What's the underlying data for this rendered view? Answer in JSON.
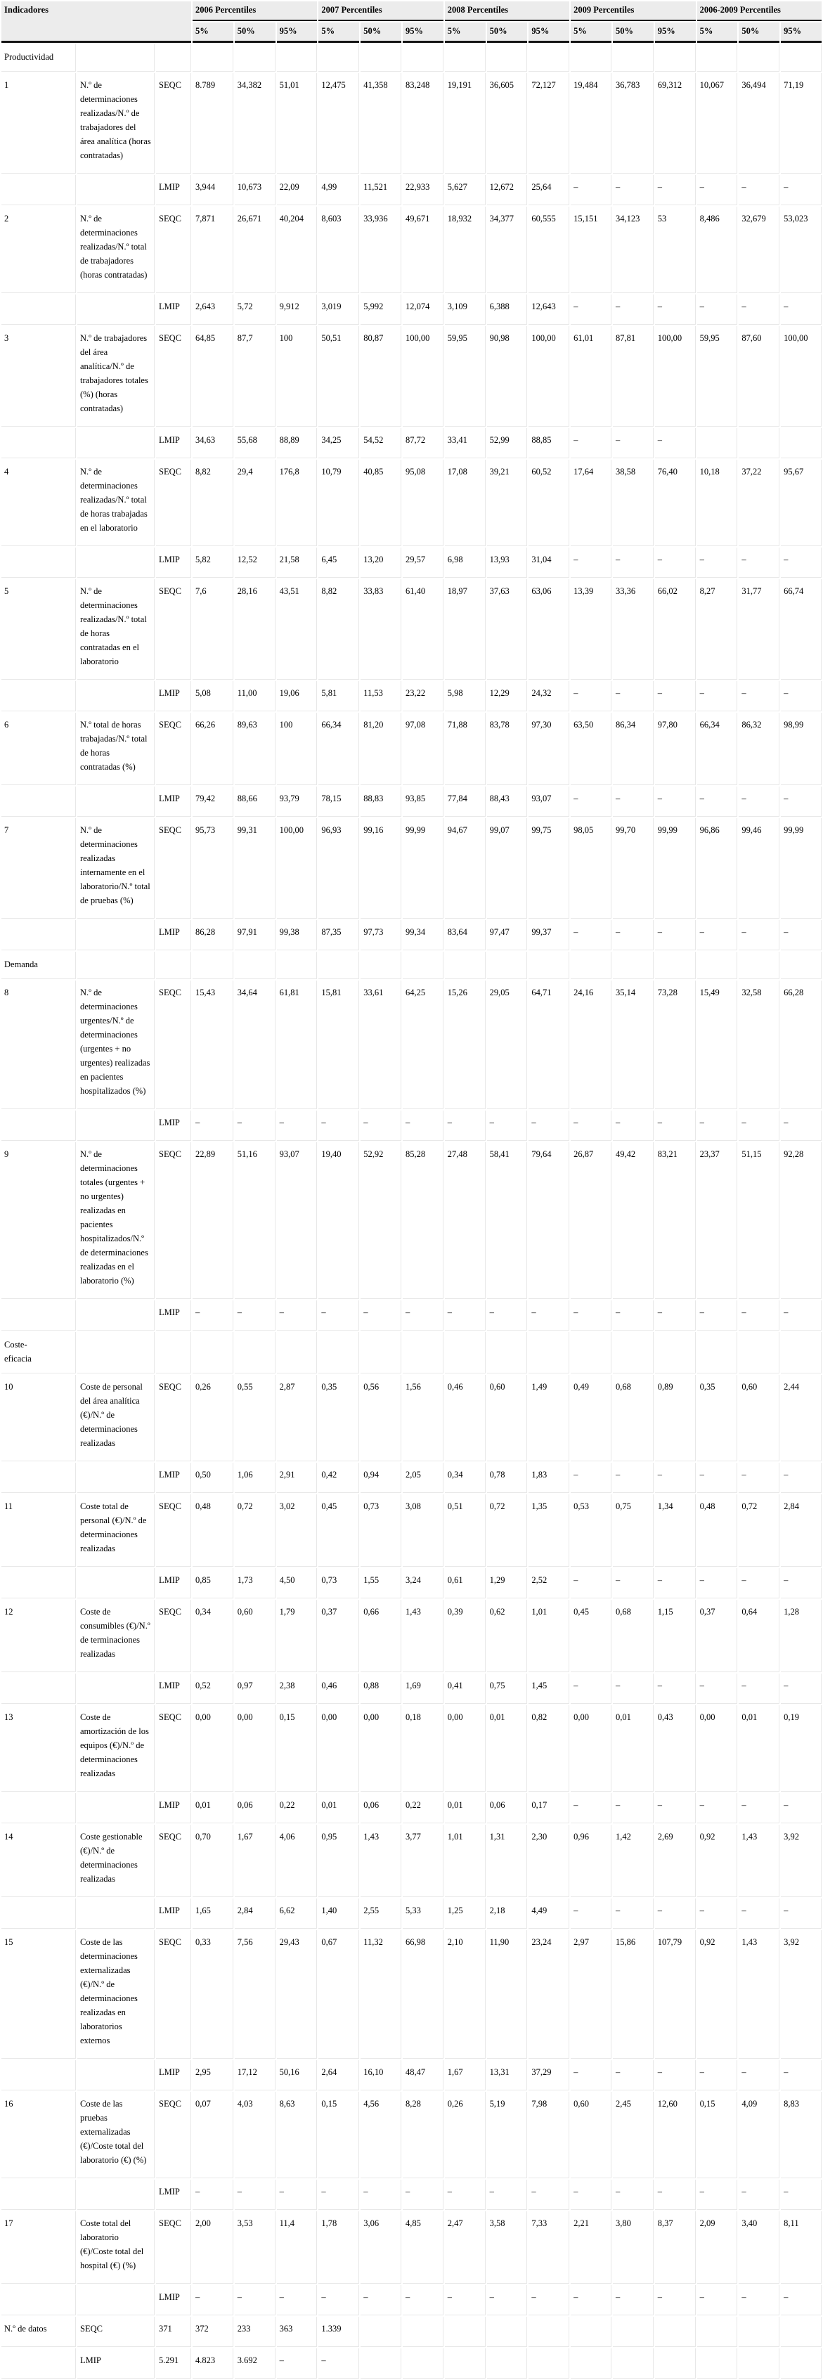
{
  "header": {
    "indicadores": "Indicadores",
    "groups": [
      {
        "label": "2006 Percentiles"
      },
      {
        "label": "2007 Percentiles"
      },
      {
        "label": "2008 Percentiles"
      },
      {
        "label": "2009 Percentiles"
      },
      {
        "label": "2006-2009 Percentiles"
      }
    ],
    "percentiles": [
      "5%",
      "50%",
      "95%"
    ]
  },
  "series_labels": {
    "seqc": "SEQC",
    "lmip": "LMIP"
  },
  "sections": [
    {
      "title": "Productividad",
      "rows": [
        {
          "num": "1",
          "desc": "N.º de determinaciones realizadas/N.º de trabajadores del área analítica (horas contratadas)",
          "seqc": [
            "8.789",
            "34,382",
            "51,01",
            "12,475",
            "41,358",
            "83,248",
            "19,191",
            "36,605",
            "72,127",
            "19,484",
            "36,783",
            "69,312",
            "10,067",
            "36,494",
            "71,19"
          ],
          "lmip": [
            "3,944",
            "10,673",
            "22,09",
            "4,99",
            "11,521",
            "22,933",
            "5,627",
            "12,672",
            "25,64",
            "–",
            "–",
            "–",
            "–",
            "–",
            "–"
          ]
        },
        {
          "num": "2",
          "desc": "N.º de determinaciones realizadas/N.º total de trabajadores (horas contratadas)",
          "seqc": [
            "7,871",
            "26,671",
            "40,204",
            "8,603",
            "33,936",
            "49,671",
            "18,932",
            "34,377",
            "60,555",
            "15,151",
            "34,123",
            "53",
            "8,486",
            "32,679",
            "53,023"
          ],
          "lmip": [
            "2,643",
            "5,72",
            "9,912",
            "3,019",
            "5,992",
            "12,074",
            "3,109",
            "6,388",
            "12,643",
            "–",
            "–",
            "–",
            "–",
            "–",
            "–"
          ]
        },
        {
          "num": "3",
          "desc": "N.º de trabajadores del área analítica/N.º de trabajadores totales (%) (horas contratadas)",
          "seqc": [
            "64,85",
            "87,7",
            "100",
            "50,51",
            "80,87",
            "100,00",
            "59,95",
            "90,98",
            "100,00",
            "61,01",
            "87,81",
            "100,00",
            "59,95",
            "87,60",
            "100,00"
          ],
          "lmip": [
            "34,63",
            "55,68",
            "88,89",
            "34,25",
            "54,52",
            "87,72",
            "33,41",
            "52,99",
            "88,85",
            "–",
            "–",
            "–",
            "",
            "",
            ""
          ]
        },
        {
          "num": "4",
          "desc": "N.º de determinaciones realizadas/N.º total de horas trabajadas en el laboratorio",
          "seqc": [
            "8,82",
            "29,4",
            "176,8",
            "10,79",
            "40,85",
            "95,08",
            "17,08",
            "39,21",
            "60,52",
            "17,64",
            "38,58",
            "76,40",
            "10,18",
            "37,22",
            "95,67"
          ],
          "lmip": [
            "5,82",
            "12,52",
            "21,58",
            "6,45",
            "13,20",
            "29,57",
            "6,98",
            "13,93",
            "31,04",
            "–",
            "–",
            "–",
            "–",
            "–",
            "–"
          ]
        },
        {
          "num": "5",
          "desc": "N.º de determinaciones realizadas/N.º total de horas contratadas en el laboratorio",
          "seqc": [
            "7,6",
            "28,16",
            "43,51",
            "8,82",
            "33,83",
            "61,40",
            "18,97",
            "37,63",
            "63,06",
            "13,39",
            "33,36",
            "66,02",
            "8,27",
            "31,77",
            "66,74"
          ],
          "lmip": [
            "5,08",
            "11,00",
            "19,06",
            "5,81",
            "11,53",
            "23,22",
            "5,98",
            "12,29",
            "24,32",
            "–",
            "–",
            "–",
            "–",
            "–",
            "–"
          ]
        },
        {
          "num": "6",
          "desc": "N.º total de horas trabajadas/N.º total de horas contratadas (%)",
          "seqc": [
            "66,26",
            "89,63",
            "100",
            "66,34",
            "81,20",
            "97,08",
            "71,88",
            "83,78",
            "97,30",
            "63,50",
            "86,34",
            "97,80",
            "66,34",
            "86,32",
            "98,99"
          ],
          "lmip": [
            "79,42",
            "88,66",
            "93,79",
            "78,15",
            "88,83",
            "93,85",
            "77,84",
            "88,43",
            "93,07",
            "–",
            "–",
            "–",
            "–",
            "–",
            "–"
          ]
        },
        {
          "num": "7",
          "desc": "N.º de determinaciones realizadas internamente en el laboratorio/N.º total de pruebas (%)",
          "seqc": [
            "95,73",
            "99,31",
            "100,00",
            "96,93",
            "99,16",
            "99,99",
            "94,67",
            "99,07",
            "99,75",
            "98,05",
            "99,70",
            "99,99",
            "96,86",
            "99,46",
            "99,99"
          ],
          "lmip": [
            "86,28",
            "97,91",
            "99,38",
            "87,35",
            "97,73",
            "99,34",
            "83,64",
            "97,47",
            "99,37",
            "–",
            "–",
            "–",
            "–",
            "–",
            "–"
          ]
        }
      ]
    },
    {
      "title": "Demanda",
      "rows": [
        {
          "num": "8",
          "desc": "N.º de determinaciones urgentes/N.º de determinaciones (urgentes + no urgentes) realizadas en pacientes hospitalizados (%)",
          "seqc": [
            "15,43",
            "34,64",
            "61,81",
            "15,81",
            "33,61",
            "64,25",
            "15,26",
            "29,05",
            "64,71",
            "24,16",
            "35,14",
            "73,28",
            "15,49",
            "32,58",
            "66,28"
          ],
          "lmip": [
            "–",
            "–",
            "–",
            "–",
            "–",
            "–",
            "–",
            "–",
            "–",
            "–",
            "–",
            "–",
            "–",
            "–",
            "–"
          ]
        },
        {
          "num": "9",
          "desc": "N.º de determinaciones totales (urgentes + no urgentes) realizadas en pacientes hospitalizados/N.º de determinaciones realizadas en el laboratorio (%)",
          "seqc": [
            "22,89",
            "51,16",
            "93,07",
            "19,40",
            "52,92",
            "85,28",
            "27,48",
            "58,41",
            "79,64",
            "26,87",
            "49,42",
            "83,21",
            "23,37",
            "51,15",
            "92,28"
          ],
          "lmip": [
            "–",
            "–",
            "–",
            "–",
            "–",
            "–",
            "–",
            "–",
            "–",
            "–",
            "–",
            "–",
            "–",
            "–",
            "–"
          ]
        }
      ]
    },
    {
      "title": "Coste-eficacia",
      "rows": [
        {
          "num": "10",
          "desc": "Coste de personal del área analítica (€)/N.º de determinaciones realizadas",
          "seqc": [
            "0,26",
            "0,55",
            "2,87",
            "0,35",
            "0,56",
            "1,56",
            "0,46",
            "0,60",
            "1,49",
            "0,49",
            "0,68",
            "0,89",
            "0,35",
            "0,60",
            "2,44"
          ],
          "lmip": [
            "0,50",
            "1,06",
            "2,91",
            "0,42",
            "0,94",
            "2,05",
            "0,34",
            "0,78",
            "1,83",
            "–",
            "–",
            "–",
            "–",
            "–",
            "–"
          ]
        },
        {
          "num": "11",
          "desc": "Coste total de personal (€)/N.º de determinaciones realizadas",
          "seqc": [
            "0,48",
            "0,72",
            "3,02",
            "0,45",
            "0,73",
            "3,08",
            "0,51",
            "0,72",
            "1,35",
            "0,53",
            "0,75",
            "1,34",
            "0,48",
            "0,72",
            "2,84"
          ],
          "lmip": [
            "0,85",
            "1,73",
            "4,50",
            "0,73",
            "1,55",
            "3,24",
            "0,61",
            "1,29",
            "2,52",
            "–",
            "–",
            "–",
            "–",
            "–",
            "–"
          ]
        },
        {
          "num": "12",
          "desc": "Coste de consumibles (€)/N.º de terminaciones realizadas",
          "seqc": [
            "0,34",
            "0,60",
            "1,79",
            "0,37",
            "0,66",
            "1,43",
            "0,39",
            "0,62",
            "1,01",
            "0,45",
            "0,68",
            "1,15",
            "0,37",
            "0,64",
            "1,28"
          ],
          "lmip": [
            "0,52",
            "0,97",
            "2,38",
            "0,46",
            "0,88",
            "1,69",
            "0,41",
            "0,75",
            "1,45",
            "–",
            "–",
            "–",
            "–",
            "–",
            "–"
          ]
        },
        {
          "num": "13",
          "desc": "Coste de amortización de los equipos (€)/N.º de determinaciones realizadas",
          "seqc": [
            "0,00",
            "0,00",
            "0,15",
            "0,00",
            "0,00",
            "0,18",
            "0,00",
            "0,01",
            "0,82",
            "0,00",
            "0,01",
            "0,43",
            "0,00",
            "0,01",
            "0,19"
          ],
          "lmip": [
            "0,01",
            "0,06",
            "0,22",
            "0,01",
            "0,06",
            "0,22",
            "0,01",
            "0,06",
            "0,17",
            "–",
            "–",
            "–",
            "–",
            "–",
            "–"
          ]
        },
        {
          "num": "14",
          "desc": "Coste gestionable (€)/N.º de determinaciones realizadas",
          "seqc": [
            "0,70",
            "1,67",
            "4,06",
            "0,95",
            "1,43",
            "3,77",
            "1,01",
            "1,31",
            "2,30",
            "0,96",
            "1,42",
            "2,69",
            "0,92",
            "1,43",
            "3,92"
          ],
          "lmip": [
            "1,65",
            "2,84",
            "6,62",
            "1,40",
            "2,55",
            "5,33",
            "1,25",
            "2,18",
            "4,49",
            "–",
            "–",
            "–",
            "–",
            "–",
            "–"
          ]
        },
        {
          "num": "15",
          "desc": "Coste de las determinaciones externalizadas (€)/N.º de determinaciones realizadas en laboratorios externos",
          "seqc": [
            "0,33",
            "7,56",
            "29,43",
            "0,67",
            "11,32",
            "66,98",
            "2,10",
            "11,90",
            "23,24",
            "2,97",
            "15,86",
            "107,79",
            "0,92",
            "1,43",
            "3,92"
          ],
          "lmip": [
            "2,95",
            "17,12",
            "50,16",
            "2,64",
            "16,10",
            "48,47",
            "1,67",
            "13,31",
            "37,29",
            "–",
            "–",
            "–",
            "–",
            "–",
            "–"
          ]
        },
        {
          "num": "16",
          "desc": "Coste de las pruebas externalizadas (€)/Coste total del laboratorio (€) (%)",
          "seqc": [
            "0,07",
            "4,03",
            "8,63",
            "0,15",
            "4,56",
            "8,28",
            "0,26",
            "5,19",
            "7,98",
            "0,60",
            "2,45",
            "12,60",
            "0,15",
            "4,09",
            "8,83"
          ],
          "lmip": [
            "–",
            "–",
            "–",
            "–",
            "–",
            "–",
            "–",
            "–",
            "–",
            "–",
            "–",
            "–",
            "–",
            "–",
            "–"
          ]
        },
        {
          "num": "17",
          "desc": "Coste total del laboratorio (€)/Coste total del hospital (€) (%)",
          "seqc": [
            "2,00",
            "3,53",
            "11,4",
            "1,78",
            "3,06",
            "4,85",
            "2,47",
            "3,58",
            "7,33",
            "2,21",
            "3,80",
            "8,37",
            "2,09",
            "3,40",
            "8,11"
          ],
          "lmip": [
            "–",
            "–",
            "–",
            "–",
            "–",
            "–",
            "–",
            "–",
            "–",
            "–",
            "–",
            "–",
            "–",
            "–",
            "–"
          ]
        }
      ]
    }
  ],
  "footer": {
    "label": "N.º de datos",
    "seqc_label": "SEQC",
    "lmip_label": "LMIP",
    "seqc_cells": [
      "371",
      "372",
      "233",
      "363",
      "1.339",
      "",
      "",
      "",
      "",
      "",
      "",
      "",
      "",
      "",
      "",
      ""
    ],
    "lmip_cells": [
      "5.291",
      "4.823",
      "3.692",
      "–",
      "–",
      "",
      "",
      "",
      "",
      "",
      "",
      "",
      "",
      "",
      "",
      ""
    ]
  },
  "colors": {
    "header_bg": "#ececec",
    "rule_dark": "#151515",
    "grid_light": "#e8e8e8",
    "text": "#000000"
  }
}
